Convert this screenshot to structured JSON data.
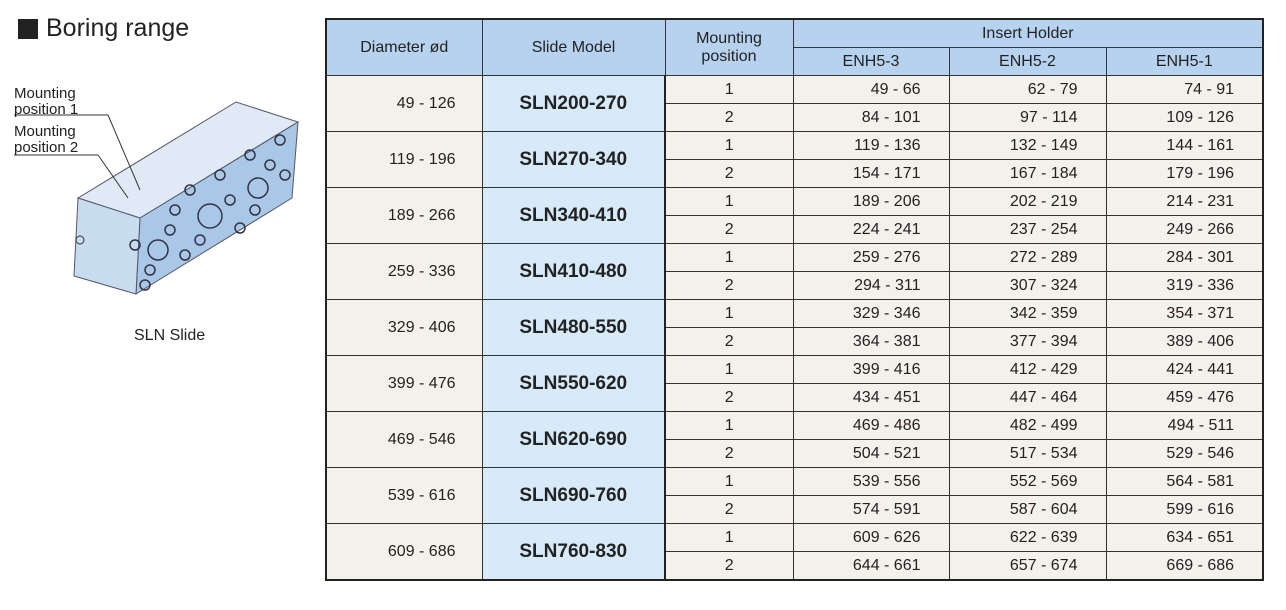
{
  "header": {
    "title": "Boring range"
  },
  "illustration": {
    "labels": [
      "Mounting position 1",
      "Mounting position 2"
    ],
    "caption": "SLN Slide"
  },
  "table": {
    "columns": {
      "diameter": "Diameter ød",
      "model": "Slide Model",
      "position": "Mounting position",
      "holder": "Insert Holder",
      "holders": [
        "ENH5-3",
        "ENH5-2",
        "ENH5-1"
      ]
    },
    "groups": [
      {
        "diameter": "49 - 126",
        "model": "SLN200-270",
        "rows": [
          [
            "1",
            "49 - 66",
            "62 - 79",
            "74 - 91"
          ],
          [
            "2",
            "84 - 101",
            "97 - 114",
            "109 - 126"
          ]
        ]
      },
      {
        "diameter": "119 - 196",
        "model": "SLN270-340",
        "rows": [
          [
            "1",
            "119 - 136",
            "132 - 149",
            "144 - 161"
          ],
          [
            "2",
            "154 - 171",
            "167 - 184",
            "179 - 196"
          ]
        ]
      },
      {
        "diameter": "189 - 266",
        "model": "SLN340-410",
        "rows": [
          [
            "1",
            "189 - 206",
            "202 - 219",
            "214 - 231"
          ],
          [
            "2",
            "224 - 241",
            "237 - 254",
            "249 - 266"
          ]
        ]
      },
      {
        "diameter": "259 - 336",
        "model": "SLN410-480",
        "rows": [
          [
            "1",
            "259 - 276",
            "272 - 289",
            "284 - 301"
          ],
          [
            "2",
            "294 - 311",
            "307 - 324",
            "319 - 336"
          ]
        ]
      },
      {
        "diameter": "329 - 406",
        "model": "SLN480-550",
        "rows": [
          [
            "1",
            "329 - 346",
            "342 - 359",
            "354 - 371"
          ],
          [
            "2",
            "364 - 381",
            "377 - 394",
            "389 - 406"
          ]
        ]
      },
      {
        "diameter": "399 - 476",
        "model": "SLN550-620",
        "rows": [
          [
            "1",
            "399 - 416",
            "412 - 429",
            "424 - 441"
          ],
          [
            "2",
            "434 - 451",
            "447 - 464",
            "459 - 476"
          ]
        ]
      },
      {
        "diameter": "469 - 546",
        "model": "SLN620-690",
        "rows": [
          [
            "1",
            "469 - 486",
            "482 - 499",
            "494 - 511"
          ],
          [
            "2",
            "504 - 521",
            "517 - 534",
            "529 - 546"
          ]
        ]
      },
      {
        "diameter": "539 - 616",
        "model": "SLN690-760",
        "rows": [
          [
            "1",
            "539 - 556",
            "552 - 569",
            "564 - 581"
          ],
          [
            "2",
            "574 - 591",
            "587 - 604",
            "599 - 616"
          ]
        ]
      },
      {
        "diameter": "609 - 686",
        "model": "SLN760-830",
        "rows": [
          [
            "1",
            "609 - 626",
            "622 - 639",
            "634 - 651"
          ],
          [
            "2",
            "644 - 661",
            "657 - 674",
            "669 - 686"
          ]
        ]
      }
    ]
  }
}
